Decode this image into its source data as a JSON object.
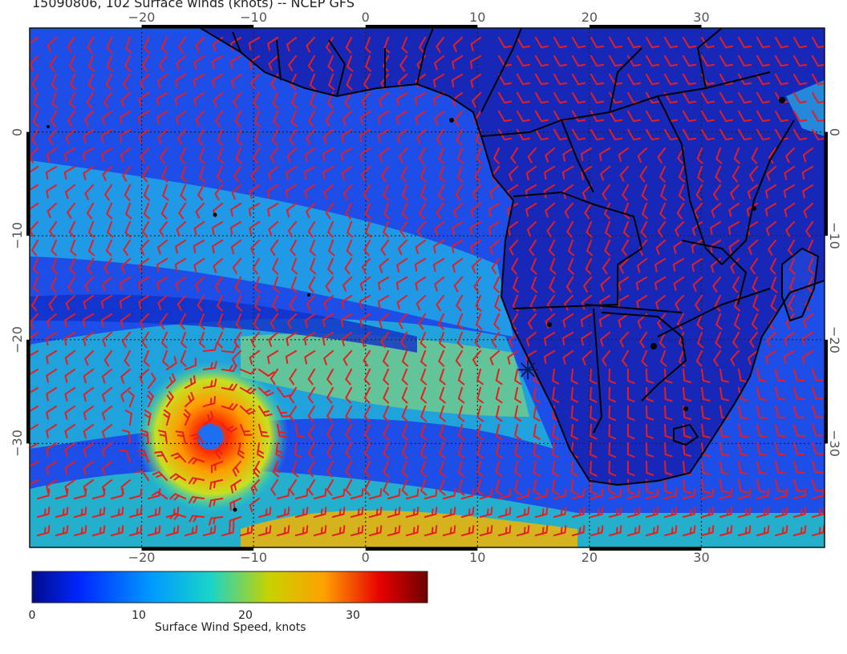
{
  "title": "15090806, 102 Surface winds (knots) -- NCEP GFS",
  "map": {
    "projection": "equirectangular",
    "lon_range": [
      -30,
      41
    ],
    "lat_range": [
      -40,
      10
    ],
    "lon_ticks": [
      -20,
      -10,
      0,
      10,
      20,
      30
    ],
    "lat_ticks": [
      0,
      -10,
      -20,
      -30
    ],
    "lon_tick_labels": [
      "−20",
      "−10",
      "0",
      "10",
      "20",
      "30"
    ],
    "lat_tick_labels": [
      "0",
      "−10",
      "−20",
      "−30"
    ],
    "grid": "dotted",
    "wind_barb_color": "#e81e1e",
    "coastline_color": "#000000",
    "marker": {
      "symbol": "asterisk",
      "lon": 14.5,
      "lat": -22.9
    }
  },
  "colorbar": {
    "title": "Surface Wind Speed, knots",
    "min": 0,
    "max": 37,
    "ticks": [
      0,
      10,
      20,
      30
    ],
    "tick_labels": [
      "0",
      "10",
      "20",
      "30"
    ],
    "colors": [
      "#000c8a",
      "#0026ff",
      "#0099ff",
      "#19d4c8",
      "#c8d200",
      "#ffa000",
      "#e60000",
      "#6e0000"
    ]
  }
}
